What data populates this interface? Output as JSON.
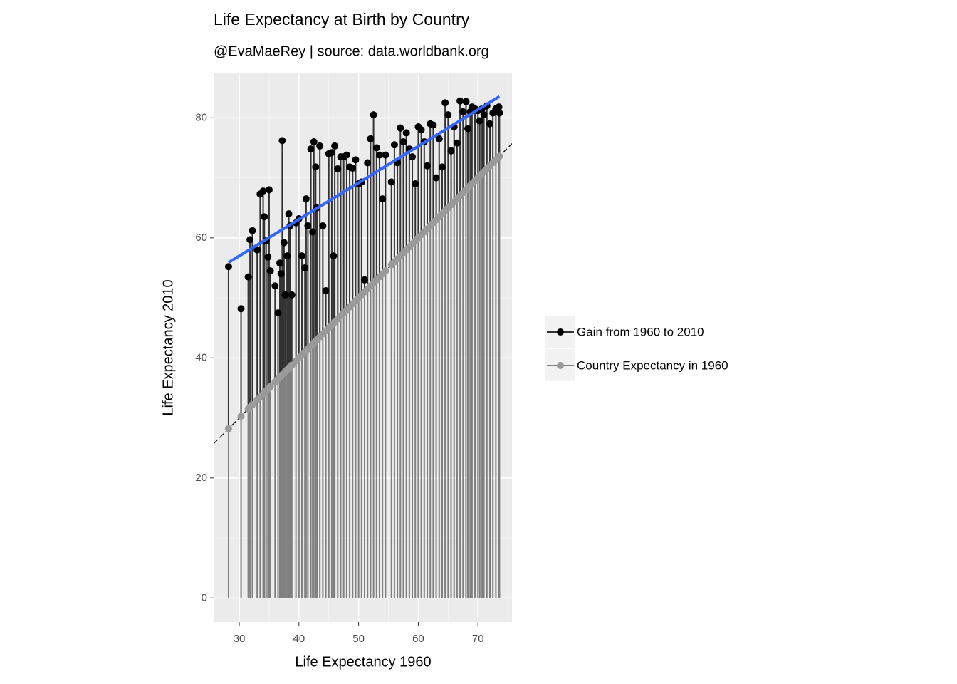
{
  "chart_data": {
    "type": "lollipop-scatter",
    "title": "Life Expectancy at Birth by Country",
    "subtitle": "@EvaMaeRey | source: data.worldbank.org",
    "x_label": "Life Expectancy 1960",
    "y_label": "Life Expectancy 2010",
    "xlim": [
      25.7,
      75.7
    ],
    "ylim": [
      -4.0,
      87.4
    ],
    "xticks": [
      30,
      40,
      50,
      60,
      70
    ],
    "yticks": [
      0,
      20,
      40,
      60,
      80
    ],
    "grid": true,
    "legend": "right",
    "trend_color": "#3366ff",
    "reference_line": "dashed",
    "x": [
      28.2,
      30.3,
      31.5,
      31.8,
      32.2,
      33,
      33.5,
      34,
      34.2,
      34.5,
      34.8,
      35,
      35.2,
      36,
      36.5,
      36.8,
      37,
      37.2,
      37.5,
      37.7,
      38,
      38.3,
      38.5,
      38.8,
      39.5,
      40,
      40.5,
      41,
      41.2,
      41.5,
      42,
      42.3,
      42.5,
      42.8,
      43,
      43.5,
      44,
      44.5,
      45,
      45.5,
      45.8,
      46,
      46.5,
      47,
      47.5,
      48,
      48.5,
      49,
      49.5,
      50,
      50.5,
      51,
      51.5,
      52,
      52.5,
      53,
      53.5,
      54,
      54.5,
      55.5,
      56,
      56.5,
      57,
      57.5,
      58,
      58.5,
      59,
      59.5,
      60,
      60.5,
      61,
      61.5,
      62,
      62.5,
      63,
      63.5,
      64,
      64.5,
      65,
      65.5,
      66,
      66.5,
      67,
      67.5,
      68,
      68.3,
      68.7,
      69,
      69.5,
      70,
      70.3,
      70.7,
      71,
      71.5,
      72,
      72.5,
      73,
      73.5,
      73.6
    ],
    "series": [
      {
        "name": "Gain from 1960 to 2010",
        "color": "#333333",
        "point_color": "#000000",
        "values": [
          55.2,
          48.2,
          53.5,
          59.7,
          61.2,
          58,
          67.3,
          67.8,
          63.5,
          59.5,
          56.8,
          68,
          54.5,
          52,
          47.5,
          55.8,
          54,
          76.2,
          59.2,
          50.5,
          57,
          64,
          62,
          50.5,
          62.5,
          63.2,
          57,
          55,
          66.5,
          62,
          74.8,
          61,
          76,
          71.8,
          65,
          75.3,
          62,
          51.2,
          74,
          74.2,
          57,
          75.3,
          71.5,
          73.5,
          73.5,
          73.8,
          71.8,
          71.6,
          73,
          69,
          69.3,
          53,
          72.5,
          76.5,
          80.5,
          75,
          73.8,
          66.5,
          73.8,
          69.3,
          75.5,
          72.5,
          78.3,
          76,
          77.5,
          74.8,
          73.5,
          69,
          78.5,
          78,
          76,
          72,
          79,
          78.8,
          70,
          76.5,
          71.8,
          82.5,
          80.5,
          74.5,
          78.5,
          75.8,
          82.8,
          81,
          82.7,
          78.2,
          81,
          81.8,
          81.5,
          81.2,
          79.5,
          81.5,
          80.5,
          82,
          79,
          80.8,
          81.5,
          81.8,
          80.8
        ]
      },
      {
        "name": "Country Expectancy in 1960",
        "color": "#808080",
        "point_color": "#9a9a9a",
        "values": [
          28.2,
          30.3,
          31.5,
          31.8,
          32.2,
          33,
          33.5,
          34,
          34.2,
          34.5,
          34.8,
          35,
          35.2,
          36,
          36.5,
          36.8,
          37,
          37.2,
          37.5,
          37.7,
          38,
          38.3,
          38.5,
          38.8,
          39.5,
          40,
          40.5,
          41,
          41.2,
          41.5,
          42,
          42.3,
          42.5,
          42.8,
          43,
          43.5,
          44,
          44.5,
          45,
          45.5,
          45.8,
          46,
          46.5,
          47,
          47.5,
          48,
          48.5,
          49,
          49.5,
          50,
          50.5,
          51,
          51.5,
          52,
          52.5,
          53,
          53.5,
          54,
          54.5,
          55.5,
          56,
          56.5,
          57,
          57.5,
          58,
          58.5,
          59,
          59.5,
          60,
          60.5,
          61,
          61.5,
          62,
          62.5,
          63,
          63.5,
          64,
          64.5,
          65,
          65.5,
          66,
          66.5,
          67,
          67.5,
          68,
          68.3,
          68.7,
          69,
          69.5,
          70,
          70.3,
          70.7,
          71,
          71.5,
          72,
          72.5,
          73,
          73.5,
          73.6
        ]
      }
    ]
  }
}
